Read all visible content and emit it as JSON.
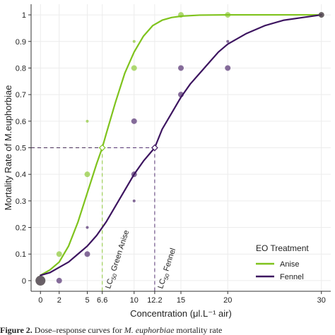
{
  "chart_data": {
    "type": "scatter",
    "title": "",
    "xlabel": "Concentration (μl.L⁻¹ air)",
    "ylabel": "Mortality Rate of M.euphorbiae",
    "xlim": [
      -1,
      31
    ],
    "ylim": [
      -0.04,
      1.04
    ],
    "x_ticks": [
      0,
      2,
      5,
      6.6,
      10,
      12.2,
      15,
      20,
      30
    ],
    "y_ticks": [
      0,
      0.1,
      0.2,
      0.3,
      0.4,
      0.5,
      0.6,
      0.7,
      0.8,
      0.9,
      1
    ],
    "legend": {
      "title": "EO Treatment",
      "position": "bottom-right"
    },
    "series": [
      {
        "name": "Anise",
        "color": "#7fc31d",
        "lc50": 6.6,
        "lc50_label_main": "LC",
        "lc50_label_sub": "50",
        "lc50_label_rest": " Green Anise",
        "points": [
          {
            "x": 0,
            "y": 0,
            "size": 3
          },
          {
            "x": 2,
            "y": 0.1,
            "size": 2
          },
          {
            "x": 5,
            "y": 0.6,
            "size": 1
          },
          {
            "x": 5,
            "y": 0.4,
            "size": 2
          },
          {
            "x": 10,
            "y": 0.9,
            "size": 1
          },
          {
            "x": 10,
            "y": 0.8,
            "size": 2
          },
          {
            "x": 15,
            "y": 1,
            "size": 2
          },
          {
            "x": 20,
            "y": 1,
            "size": 2
          },
          {
            "x": 30,
            "y": 1,
            "size": 2
          }
        ],
        "curve": [
          {
            "x": 0,
            "y": 0.02
          },
          {
            "x": 1,
            "y": 0.04
          },
          {
            "x": 2,
            "y": 0.07
          },
          {
            "x": 3,
            "y": 0.13
          },
          {
            "x": 4,
            "y": 0.22
          },
          {
            "x": 5,
            "y": 0.33
          },
          {
            "x": 6,
            "y": 0.44
          },
          {
            "x": 6.6,
            "y": 0.5
          },
          {
            "x": 7,
            "y": 0.55
          },
          {
            "x": 8,
            "y": 0.67
          },
          {
            "x": 9,
            "y": 0.78
          },
          {
            "x": 10,
            "y": 0.86
          },
          {
            "x": 11,
            "y": 0.92
          },
          {
            "x": 12,
            "y": 0.96
          },
          {
            "x": 13,
            "y": 0.98
          },
          {
            "x": 14,
            "y": 0.99
          },
          {
            "x": 15,
            "y": 0.995
          },
          {
            "x": 17,
            "y": 0.999
          },
          {
            "x": 20,
            "y": 1
          },
          {
            "x": 25,
            "y": 1
          },
          {
            "x": 30,
            "y": 1
          }
        ]
      },
      {
        "name": "Fennel",
        "color": "#3d1560",
        "lc50": 12.2,
        "lc50_label_main": "LC",
        "lc50_label_sub": "50",
        "lc50_label_rest": " Fennel",
        "points": [
          {
            "x": 0,
            "y": 0,
            "size": 3
          },
          {
            "x": 2,
            "y": 0,
            "size": 2
          },
          {
            "x": 5,
            "y": 0.2,
            "size": 1
          },
          {
            "x": 5,
            "y": 0.1,
            "size": 2
          },
          {
            "x": 10,
            "y": 0.6,
            "size": 2
          },
          {
            "x": 10,
            "y": 0.4,
            "size": 2
          },
          {
            "x": 10,
            "y": 0.3,
            "size": 1
          },
          {
            "x": 15,
            "y": 0.8,
            "size": 2
          },
          {
            "x": 15,
            "y": 0.7,
            "size": 2
          },
          {
            "x": 20,
            "y": 0.9,
            "size": 1
          },
          {
            "x": 20,
            "y": 0.8,
            "size": 2
          },
          {
            "x": 30,
            "y": 1,
            "size": 2
          }
        ],
        "curve": [
          {
            "x": 0,
            "y": 0.02
          },
          {
            "x": 1,
            "y": 0.03
          },
          {
            "x": 2,
            "y": 0.05
          },
          {
            "x": 3,
            "y": 0.07
          },
          {
            "x": 4,
            "y": 0.1
          },
          {
            "x": 5,
            "y": 0.13
          },
          {
            "x": 6,
            "y": 0.17
          },
          {
            "x": 7,
            "y": 0.22
          },
          {
            "x": 8,
            "y": 0.28
          },
          {
            "x": 9,
            "y": 0.34
          },
          {
            "x": 10,
            "y": 0.4
          },
          {
            "x": 11,
            "y": 0.45
          },
          {
            "x": 12.2,
            "y": 0.5
          },
          {
            "x": 13,
            "y": 0.57
          },
          {
            "x": 14,
            "y": 0.63
          },
          {
            "x": 15,
            "y": 0.69
          },
          {
            "x": 16,
            "y": 0.74
          },
          {
            "x": 17,
            "y": 0.78
          },
          {
            "x": 18,
            "y": 0.82
          },
          {
            "x": 19,
            "y": 0.86
          },
          {
            "x": 20,
            "y": 0.89
          },
          {
            "x": 22,
            "y": 0.93
          },
          {
            "x": 24,
            "y": 0.96
          },
          {
            "x": 26,
            "y": 0.98
          },
          {
            "x": 28,
            "y": 0.99
          },
          {
            "x": 30,
            "y": 1
          }
        ]
      }
    ]
  },
  "caption": {
    "label": "Figure 2.",
    "text_a": " Dose–response curves for ",
    "text_b": "M. euphorbiae",
    "text_c": " mortality rate"
  }
}
